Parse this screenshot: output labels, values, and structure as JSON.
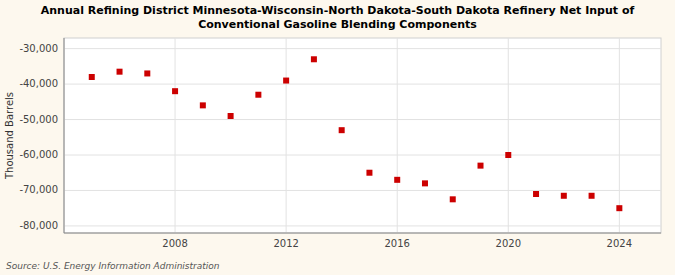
{
  "chart_data": {
    "type": "scatter",
    "title": "Annual Refining District Minnesota-Wisconsin-North Dakota-South Dakota Refinery Net Input of\nConventional Gasoline Blending Components",
    "ylabel": "Thousand Barrels",
    "source": "Source: U.S. Energy Information Administration",
    "x": [
      2005,
      2006,
      2007,
      2008,
      2009,
      2010,
      2011,
      2012,
      2013,
      2014,
      2015,
      2016,
      2017,
      2018,
      2019,
      2020,
      2021,
      2022,
      2023,
      2024
    ],
    "values": [
      -38000,
      -36500,
      -37000,
      -42000,
      -46000,
      -49000,
      -43000,
      -39000,
      -33000,
      -53000,
      -65000,
      -67000,
      -68000,
      -72500,
      -63000,
      -60000,
      -71000,
      -71500,
      -71500,
      -75000
    ],
    "color": "#cc0000",
    "marker": "square",
    "xlim": [
      2004.0,
      2025.5
    ],
    "xticks": [
      2008,
      2012,
      2016,
      2020,
      2024
    ],
    "ylim": [
      -82000,
      -27000
    ],
    "yticks": [
      {
        "value": -30000,
        "label": "-30,000"
      },
      {
        "value": -40000,
        "label": "-40,000"
      },
      {
        "value": -50000,
        "label": "-50,000"
      },
      {
        "value": -60000,
        "label": "-60,000"
      },
      {
        "value": -70000,
        "label": "-70,000"
      },
      {
        "value": -80000,
        "label": "-80,000"
      }
    ],
    "grid": true
  }
}
